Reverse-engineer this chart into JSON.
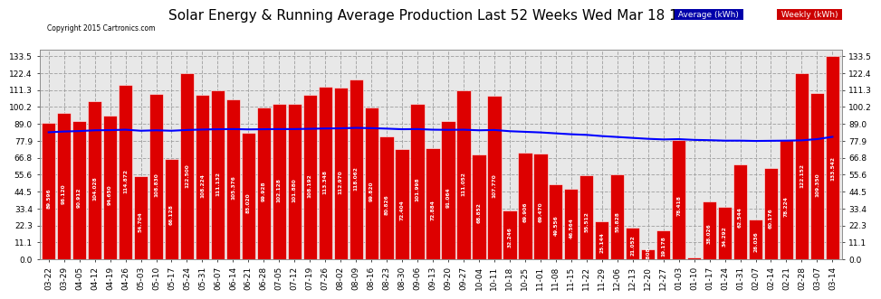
{
  "title": "Solar Energy & Running Average Production Last 52 Weeks Wed Mar 18 18:56",
  "copyright": "Copyright 2015 Cartronics.com",
  "bar_color": "#dd0000",
  "bar_edge_color": "#ffffff",
  "avg_line_color": "#0000ff",
  "background_color": "#ffffff",
  "plot_bg_color": "#e8e8e8",
  "grid_color": "#aaaaaa",
  "ytick_labels": [
    "0.0",
    "11.1",
    "22.3",
    "33.4",
    "44.5",
    "55.6",
    "66.8",
    "77.9",
    "89.0",
    "100.2",
    "111.3",
    "122.4",
    "133.5"
  ],
  "ytick_values": [
    0.0,
    11.1,
    22.3,
    33.4,
    44.5,
    55.6,
    66.8,
    77.9,
    89.0,
    100.2,
    111.3,
    122.4,
    133.5
  ],
  "categories": [
    "03-22",
    "03-29",
    "04-05",
    "04-12",
    "04-19",
    "04-26",
    "05-03",
    "05-10",
    "05-17",
    "05-24",
    "05-31",
    "06-07",
    "06-14",
    "06-21",
    "06-28",
    "07-05",
    "07-12",
    "07-19",
    "07-26",
    "08-02",
    "08-09",
    "08-16",
    "08-23",
    "08-30",
    "09-06",
    "09-13",
    "09-20",
    "09-27",
    "10-04",
    "10-11",
    "10-18",
    "10-25",
    "11-01",
    "11-08",
    "11-15",
    "11-22",
    "11-29",
    "12-06",
    "12-13",
    "12-20",
    "12-27",
    "01-03",
    "01-10",
    "01-17",
    "01-24",
    "01-31",
    "02-07",
    "02-14",
    "02-21",
    "02-28",
    "03-07",
    "03-14"
  ],
  "weekly_values": [
    89.596,
    96.12,
    90.912,
    104.028,
    94.65,
    114.872,
    54.704,
    108.83,
    66.128,
    122.5,
    108.224,
    111.132,
    105.376,
    83.02,
    99.928,
    102.128,
    101.88,
    108.192,
    113.348,
    112.97,
    118.062,
    99.82,
    80.826,
    72.404,
    101.998,
    72.884,
    91.064,
    111.052,
    68.852,
    107.77,
    32.246,
    69.906,
    69.47,
    49.556,
    46.564,
    55.512,
    25.144,
    55.828,
    21.052,
    6.808,
    19.178,
    78.418,
    1.03,
    38.026,
    34.292,
    62.544,
    26.036,
    60.176,
    78.224,
    122.152,
    109.35,
    133.542
  ],
  "avg_values": [
    83.5,
    84.0,
    84.3,
    84.8,
    84.9,
    85.2,
    84.5,
    84.8,
    84.5,
    85.0,
    85.3,
    85.5,
    85.6,
    85.4,
    85.5,
    85.6,
    85.6,
    85.8,
    86.0,
    86.1,
    86.4,
    86.2,
    85.9,
    85.5,
    85.6,
    85.2,
    85.1,
    85.2,
    84.8,
    85.0,
    84.2,
    83.8,
    83.4,
    82.8,
    82.2,
    81.8,
    81.0,
    80.4,
    79.8,
    79.2,
    78.8,
    79.0,
    78.5,
    78.3,
    78.0,
    78.0,
    77.8,
    77.9,
    78.0,
    78.2,
    79.0,
    80.5
  ],
  "ylim_max": 138,
  "title_fontsize": 11,
  "tick_fontsize": 6.5,
  "label_fontsize": 4.2
}
